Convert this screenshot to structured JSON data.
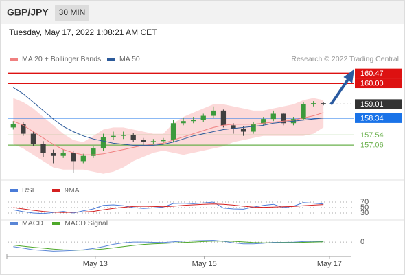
{
  "header": {
    "symbol": "GBP/JPY",
    "timeframe": "30 MIN",
    "timestamp": "Tuesday, May 17, 2022 1:08:21 AM CET"
  },
  "chart_data": [
    {
      "type": "candlestick",
      "source": "Research © 2022 Trading Central",
      "xlim": [
        -0.5,
        33.8
      ],
      "ylim": [
        155.4,
        160.85
      ],
      "up_color": "#3c9a3c",
      "down_color": "#404040",
      "open": [
        157.9,
        158.05,
        157.6,
        157.1,
        156.7,
        156.55,
        156.7,
        156.3,
        156.55,
        156.9,
        157.45,
        157.5,
        157.55,
        157.3,
        157.2,
        157.25,
        157.3,
        158.1,
        158.2,
        158.25,
        158.45,
        158.7,
        158.0,
        157.85,
        157.7,
        158.05,
        158.3,
        158.55,
        158.1,
        158.3,
        159.0,
        159.05
      ],
      "high": [
        158.2,
        158.15,
        157.75,
        157.25,
        156.85,
        156.85,
        156.8,
        156.65,
        157.0,
        157.6,
        157.7,
        157.7,
        157.65,
        157.4,
        157.35,
        157.4,
        158.25,
        158.35,
        158.4,
        158.55,
        158.9,
        158.75,
        158.1,
        157.95,
        158.15,
        158.4,
        158.7,
        158.6,
        158.4,
        159.1,
        159.15,
        159.1
      ],
      "low": [
        157.8,
        157.5,
        157.0,
        156.5,
        156.2,
        156.45,
        155.75,
        156.2,
        156.45,
        156.8,
        157.3,
        157.35,
        157.2,
        157.05,
        157.1,
        157.15,
        157.2,
        158.0,
        158.1,
        158.15,
        158.35,
        157.9,
        157.6,
        157.5,
        157.6,
        157.95,
        158.2,
        158.0,
        158.0,
        158.25,
        158.9,
        158.95
      ],
      "close": [
        158.05,
        157.6,
        157.1,
        156.7,
        156.55,
        156.7,
        156.3,
        156.55,
        156.9,
        157.45,
        157.5,
        157.55,
        157.3,
        157.2,
        157.25,
        157.3,
        158.1,
        158.2,
        158.25,
        158.45,
        158.7,
        158.0,
        157.85,
        157.7,
        158.05,
        158.3,
        158.55,
        158.1,
        158.3,
        159.0,
        159.05,
        159.01
      ],
      "series": [
        {
          "name": "MA 20 + Bollinger Bands",
          "color": "#f08080",
          "band_color": "#fcd9d9",
          "values": [
            158.2,
            158.0,
            157.7,
            157.4,
            157.1,
            156.85,
            156.7,
            156.6,
            156.6,
            156.65,
            156.75,
            156.85,
            156.95,
            157.05,
            157.1,
            157.15,
            157.3,
            157.45,
            157.6,
            157.75,
            157.9,
            158.0,
            158.05,
            158.05,
            158.05,
            158.1,
            158.15,
            158.2,
            158.25,
            158.35,
            158.45,
            158.6
          ],
          "upper": [
            159.3,
            159.1,
            158.8,
            158.4,
            158.0,
            157.6,
            157.3,
            157.2,
            157.5,
            157.8,
            157.9,
            157.9,
            157.8,
            157.7,
            157.6,
            157.6,
            158.1,
            158.4,
            158.6,
            158.8,
            159.0,
            159.0,
            158.9,
            158.8,
            158.7,
            158.7,
            158.8,
            158.9,
            159.0,
            159.2,
            159.3,
            159.2
          ],
          "lower": [
            157.1,
            156.9,
            156.6,
            156.3,
            156.0,
            155.9,
            155.9,
            155.9,
            155.8,
            155.7,
            155.8,
            156.0,
            156.3,
            156.5,
            156.7,
            156.8,
            156.7,
            156.6,
            156.7,
            156.8,
            156.9,
            157.0,
            157.2,
            157.3,
            157.4,
            157.5,
            157.5,
            157.5,
            157.5,
            157.5,
            157.6,
            157.9
          ]
        },
        {
          "name": "MA 50",
          "color": "#2c5a9a",
          "values": [
            159.8,
            159.5,
            159.1,
            158.7,
            158.3,
            157.95,
            157.7,
            157.5,
            157.35,
            157.25,
            157.15,
            157.1,
            157.05,
            157.05,
            157.05,
            157.1,
            157.2,
            157.35,
            157.5,
            157.6,
            157.7,
            157.8,
            157.85,
            157.9,
            157.95,
            158.0,
            158.1,
            158.15,
            158.2,
            158.25,
            158.3,
            158.34
          ]
        }
      ],
      "levels": [
        {
          "value": 160.47,
          "color": "#dd1111",
          "line": "solid",
          "label_style": "box"
        },
        {
          "value": {
            "value": 160,
            "label": "160.00"
          },
          "color": "#dd1111",
          "line": "solid",
          "label_style": "box"
        },
        {
          "value": 159.01,
          "color": "#333333",
          "line": "dotted",
          "label_style": "box"
        },
        {
          "value": 158.34,
          "color": "#1a73e8",
          "line": "solid",
          "label_style": "box"
        },
        {
          "value": 157.54,
          "color": "#6ab04c",
          "line": "solid",
          "label_style": "text"
        },
        {
          "value": 157.06,
          "color": "#6ab04c",
          "line": "solid",
          "label_style": "text"
        }
      ]
    },
    {
      "type": "line",
      "xlim": [
        -0.5,
        33.8
      ],
      "ylim": [
        0,
        100
      ],
      "yticks": [
        30,
        50,
        70
      ],
      "series": [
        {
          "name": "RSI",
          "color": "#4a7bd8",
          "values": [
            42,
            35,
            30,
            28,
            32,
            36,
            30,
            38,
            45,
            58,
            60,
            57,
            50,
            47,
            49,
            52,
            65,
            66,
            64,
            67,
            70,
            48,
            45,
            44,
            52,
            58,
            62,
            50,
            55,
            68,
            66,
            63
          ]
        },
        {
          "name": "9MA",
          "color": "#d42020",
          "values": [
            50,
            45,
            40,
            36,
            33,
            32,
            33,
            34,
            36,
            42,
            47,
            51,
            54,
            55,
            54,
            53,
            55,
            58,
            60,
            62,
            63,
            62,
            59,
            55,
            52,
            51,
            52,
            53,
            54,
            57,
            59,
            61
          ]
        }
      ]
    },
    {
      "type": "line",
      "xlim": [
        -0.5,
        33.8
      ],
      "ylim": [
        -0.9,
        1.0
      ],
      "yticks": [
        0
      ],
      "xticks": [
        {
          "value": 8.2,
          "label": "May 13"
        },
        {
          "value": 19.1,
          "label": "May 15"
        },
        {
          "value": 31.6,
          "label": "May 17"
        }
      ],
      "series": [
        {
          "name": "MACD",
          "color": "#5a86d6",
          "values": [
            -0.3,
            -0.4,
            -0.5,
            -0.55,
            -0.6,
            -0.58,
            -0.55,
            -0.5,
            -0.42,
            -0.3,
            -0.15,
            -0.05,
            0,
            0,
            -0.02,
            -0.03,
            0.02,
            0.06,
            0.08,
            0.1,
            0.12,
            0.05,
            -0.05,
            -0.12,
            -0.12,
            -0.08,
            -0.02,
            -0.02,
            -0.01,
            0.03,
            0.05,
            0.05
          ]
        },
        {
          "name": "MACD Signal",
          "color": "#4ea82a",
          "values": [
            -0.2,
            -0.27,
            -0.34,
            -0.4,
            -0.46,
            -0.5,
            -0.52,
            -0.52,
            -0.5,
            -0.45,
            -0.38,
            -0.3,
            -0.22,
            -0.16,
            -0.12,
            -0.09,
            -0.06,
            -0.03,
            0,
            0.03,
            0.06,
            0.07,
            0.05,
            0.01,
            -0.03,
            -0.05,
            -0.05,
            -0.04,
            -0.04,
            -0.02,
            0,
            0.02
          ]
        }
      ]
    }
  ]
}
